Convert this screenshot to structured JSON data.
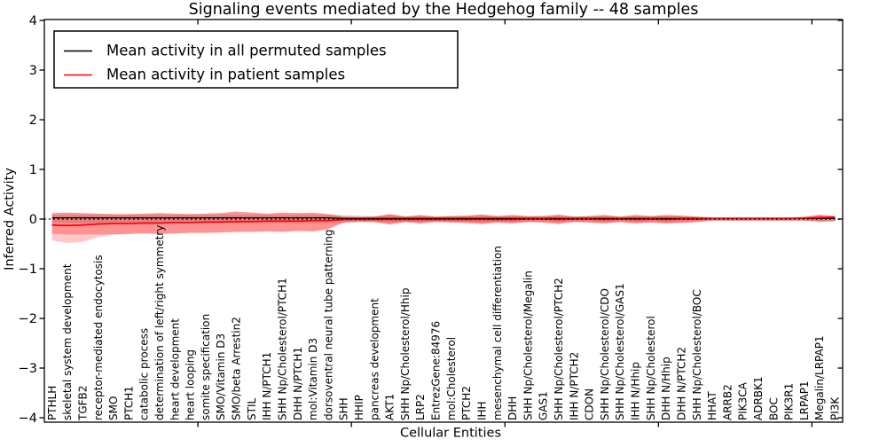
{
  "figure": {
    "background": "#ffffff"
  },
  "chart_data": {
    "type": "line",
    "title": "Signaling events mediated by the Hedgehog family -- 48 samples",
    "xlabel": "Cellular Entities",
    "ylabel": "Inferred Activity",
    "ylim": [
      -4,
      4
    ],
    "grid": false,
    "legend": {
      "position": "upper-left",
      "entries": [
        {
          "label": "Mean activity in all permuted samples",
          "color": "#000000"
        },
        {
          "label": "Mean activity in patient samples",
          "color": "#ff0000"
        }
      ]
    },
    "yticks": [
      {
        "value": 4,
        "label": "4"
      },
      {
        "value": 3,
        "label": "3"
      },
      {
        "value": 2,
        "label": "2"
      },
      {
        "value": 1,
        "label": "1"
      },
      {
        "value": 0,
        "label": "0"
      },
      {
        "value": -1,
        "label": "−1"
      },
      {
        "value": -2,
        "label": "−2"
      },
      {
        "value": -3,
        "label": "−3"
      },
      {
        "value": -4,
        "label": "−4"
      }
    ],
    "xticks": [
      10,
      20,
      30,
      40,
      50
    ],
    "categories": [
      "PTHLH",
      "skeletal system development",
      "TGFB2",
      "receptor-mediated endocytosis",
      "SMO",
      "PTCH1",
      "catabolic process",
      "determination of left/right symmetry",
      "heart development",
      "heart looping",
      "somite specification",
      "SMO/Vitamin D3",
      "SMO/beta Arrestin2",
      "STIL",
      "IHH N/PTCH1",
      "SHH Np/Cholesterol/PTCH1",
      "DHH N/PTCH1",
      "mol:Vitamin D3",
      "dorsoventral neural tube patterning",
      "SHH",
      "HHIP",
      "pancreas development",
      "AKT1",
      "SHH Np/Cholesterol/Hhip",
      "LRP2",
      "EntrezGene:84976",
      "mol:Cholesterol",
      "PTCH2",
      "IHH",
      "mesenchymal cell differentiation",
      "DHH",
      "SHH Np/Cholesterol/Megalin",
      "GAS1",
      "SHH Np/Cholesterol/PTCH2",
      "IHH N/PTCH2",
      "CDON",
      "SHH Np/Cholesterol/CDO",
      "SHH Np/Cholesterol/GAS1",
      "IHH N/Hhip",
      "SHH Np/Cholesterol",
      "DHH N/Hhip",
      "DHH N/PTCH2",
      "SHH Np/Cholesterol/BOC",
      "HHAT",
      "ARRB2",
      "PIK3CA",
      "ADRBK1",
      "BOC",
      "PIK3R1",
      "LRPAP1",
      "Megalin/LRPAP1",
      "PI3K"
    ],
    "series": [
      {
        "name": "permuted-mean",
        "color": "#000000",
        "width": 1.3,
        "values": [
          0.025,
          0.025,
          0.025,
          0.025,
          0.025,
          0.025,
          0.025,
          0.025,
          0.025,
          0.025,
          0.025,
          0.025,
          0.025,
          0.025,
          0.025,
          0.025,
          0.025,
          0.025,
          0.025,
          0.012,
          0.012,
          0.012,
          0.012,
          0.012,
          0.012,
          0.012,
          0.012,
          0.012,
          0.012,
          0.012,
          0.012,
          0.012,
          0.012,
          0.012,
          0.012,
          0.012,
          0.012,
          0.012,
          0.012,
          0.012,
          0.012,
          0.012,
          0.012,
          0.012,
          0.012,
          0.012,
          0.012,
          0.012,
          0.012,
          0.012,
          0.012,
          0.012
        ]
      },
      {
        "name": "patient-mean",
        "color": "#ff0000",
        "width": 1.7,
        "values": [
          -0.12,
          -0.13,
          -0.12,
          -0.1,
          -0.09,
          -0.09,
          -0.08,
          -0.08,
          -0.07,
          -0.07,
          -0.06,
          -0.06,
          -0.05,
          -0.05,
          -0.04,
          -0.04,
          -0.04,
          -0.03,
          -0.03,
          -0.01,
          -0.01,
          -0.01,
          -0.01,
          -0.01,
          -0.01,
          -0.01,
          -0.01,
          -0.01,
          -0.01,
          -0.01,
          -0.01,
          0,
          0,
          -0.01,
          0,
          0,
          -0.01,
          0,
          -0.01,
          0,
          -0.01,
          0,
          0,
          0.01,
          0.01,
          0.01,
          0.01,
          0.01,
          0.01,
          0.02,
          0.03,
          0.04
        ]
      }
    ],
    "bands": [
      {
        "name": "permuted-std",
        "color": "rgba(128,128,128,0.30)",
        "upper": [
          0.08,
          0.08,
          0.08,
          0.08,
          0.08,
          0.08,
          0.08,
          0.08,
          0.08,
          0.08,
          0.08,
          0.08,
          0.08,
          0.08,
          0.08,
          0.08,
          0.08,
          0.08,
          0.08,
          0.08,
          0.07,
          0.06,
          0.08,
          0.06,
          0.07,
          0.05,
          0.06,
          0.06,
          0.08,
          0.06,
          0.07,
          0.05,
          0.06,
          0.07,
          0.05,
          0.06,
          0.07,
          0.05,
          0.07,
          0.06,
          0.07,
          0.06,
          0.05,
          0.04,
          0.04,
          0.04,
          0.04,
          0.04,
          0.04,
          0.04,
          0.06,
          0.05
        ],
        "lower": [
          -0.08,
          -0.08,
          -0.08,
          -0.08,
          -0.08,
          -0.08,
          -0.08,
          -0.08,
          -0.08,
          -0.08,
          -0.08,
          -0.08,
          -0.08,
          -0.08,
          -0.08,
          -0.08,
          -0.08,
          -0.08,
          -0.08,
          -0.08,
          -0.07,
          -0.06,
          -0.08,
          -0.06,
          -0.07,
          -0.05,
          -0.06,
          -0.06,
          -0.08,
          -0.06,
          -0.07,
          -0.05,
          -0.06,
          -0.07,
          -0.05,
          -0.06,
          -0.07,
          -0.05,
          -0.07,
          -0.06,
          -0.07,
          -0.06,
          -0.05,
          -0.04,
          -0.04,
          -0.04,
          -0.04,
          -0.04,
          -0.04,
          -0.04,
          -0.06,
          -0.05
        ]
      },
      {
        "name": "patient-std-outer",
        "color": "rgba(255,0,0,0.22)",
        "upper": [
          0.12,
          0.13,
          0.12,
          0.11,
          0.1,
          0.1,
          0.11,
          0.12,
          0.11,
          0.1,
          0.11,
          0.12,
          0.15,
          0.13,
          0.11,
          0.13,
          0.12,
          0.13,
          0.1,
          0.05,
          0.04,
          0.05,
          0.1,
          0.05,
          0.08,
          0.05,
          0.06,
          0.07,
          0.09,
          0.06,
          0.08,
          0.06,
          0.06,
          0.09,
          0.05,
          0.06,
          0.08,
          0.05,
          0.08,
          0.06,
          0.08,
          0.07,
          0.05,
          0.03,
          0.03,
          0.03,
          0.03,
          0.03,
          0.03,
          0.04,
          0.09,
          0.06
        ],
        "lower": [
          -0.43,
          -0.48,
          -0.46,
          -0.36,
          -0.31,
          -0.3,
          -0.29,
          -0.3,
          -0.29,
          -0.28,
          -0.28,
          -0.27,
          -0.26,
          -0.26,
          -0.25,
          -0.26,
          -0.24,
          -0.25,
          -0.2,
          -0.07,
          -0.05,
          -0.06,
          -0.11,
          -0.06,
          -0.09,
          -0.06,
          -0.07,
          -0.08,
          -0.1,
          -0.07,
          -0.09,
          -0.06,
          -0.07,
          -0.1,
          -0.06,
          -0.07,
          -0.09,
          -0.06,
          -0.09,
          -0.07,
          -0.09,
          -0.08,
          -0.06,
          -0.03,
          -0.03,
          -0.03,
          -0.03,
          -0.03,
          -0.03,
          -0.03,
          -0.05,
          -0.04
        ]
      },
      {
        "name": "patient-std-inner",
        "color": "rgba(255,0,0,0.26)",
        "upper": [
          0.12,
          0.13,
          0.12,
          0.11,
          0.1,
          0.1,
          0.11,
          0.12,
          0.11,
          0.1,
          0.11,
          0.12,
          0.15,
          0.13,
          0.11,
          0.13,
          0.12,
          0.13,
          0.1,
          0.05,
          0.04,
          0.05,
          0.1,
          0.05,
          0.08,
          0.05,
          0.06,
          0.07,
          0.09,
          0.06,
          0.08,
          0.06,
          0.06,
          0.09,
          0.05,
          0.06,
          0.08,
          0.05,
          0.08,
          0.06,
          0.08,
          0.07,
          0.05,
          0.03,
          0.03,
          0.03,
          0.03,
          0.03,
          0.03,
          0.04,
          0.09,
          0.06
        ],
        "lower": [
          -0.3,
          -0.31,
          -0.31,
          -0.31,
          -0.31,
          -0.3,
          -0.29,
          -0.3,
          -0.29,
          -0.28,
          -0.28,
          -0.27,
          -0.26,
          -0.26,
          -0.25,
          -0.26,
          -0.24,
          -0.25,
          -0.2,
          -0.07,
          -0.05,
          -0.06,
          -0.11,
          -0.06,
          -0.09,
          -0.06,
          -0.07,
          -0.08,
          -0.1,
          -0.07,
          -0.09,
          -0.06,
          -0.07,
          -0.1,
          -0.06,
          -0.07,
          -0.09,
          -0.06,
          -0.09,
          -0.07,
          -0.09,
          -0.08,
          -0.06,
          -0.03,
          -0.03,
          -0.03,
          -0.03,
          -0.03,
          -0.03,
          -0.03,
          -0.05,
          -0.04
        ]
      }
    ],
    "zero_line": {
      "value": 0,
      "style": "dotted",
      "color": "#000000"
    }
  }
}
